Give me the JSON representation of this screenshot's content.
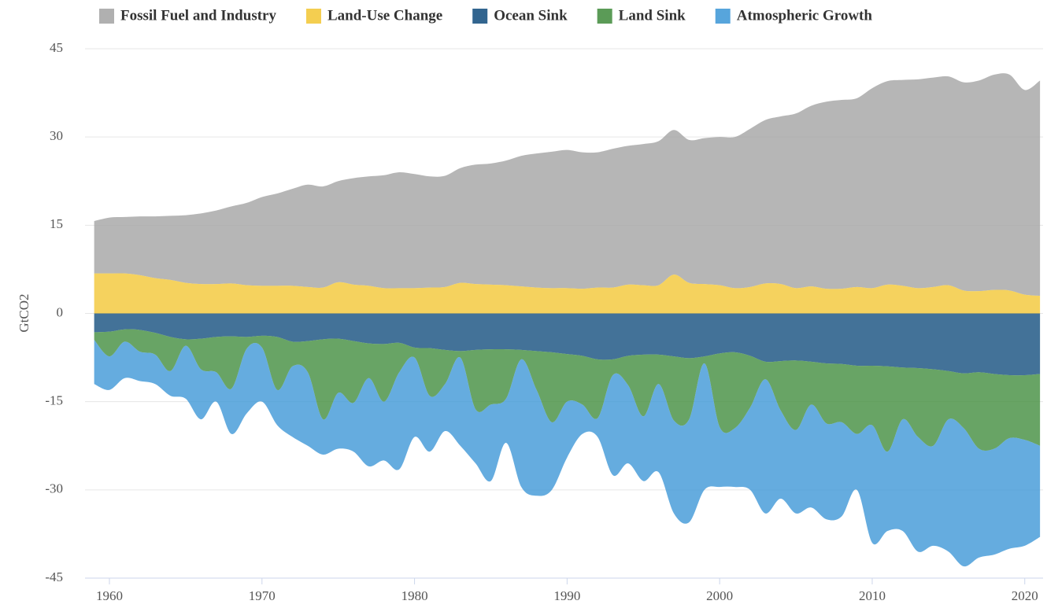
{
  "chart_data": {
    "type": "stacked_area",
    "y_label": "GtCO2",
    "x": [
      1959,
      1960,
      1961,
      1962,
      1963,
      1964,
      1965,
      1966,
      1967,
      1968,
      1969,
      1970,
      1971,
      1972,
      1973,
      1974,
      1975,
      1976,
      1977,
      1978,
      1979,
      1980,
      1981,
      1982,
      1983,
      1984,
      1985,
      1986,
      1987,
      1988,
      1989,
      1990,
      1991,
      1992,
      1993,
      1994,
      1995,
      1996,
      1997,
      1998,
      1999,
      2000,
      2001,
      2002,
      2003,
      2004,
      2005,
      2006,
      2007,
      2008,
      2009,
      2010,
      2011,
      2012,
      2013,
      2014,
      2015,
      2016,
      2017,
      2018,
      2019,
      2020,
      2021
    ],
    "series": [
      {
        "name": "Fossil Fuel and Industry",
        "color": "#a2a2a2",
        "values": [
          8.9,
          9.5,
          9.6,
          10.0,
          10.5,
          10.9,
          11.5,
          12.0,
          12.5,
          13.1,
          14.0,
          15.1,
          15.7,
          16.5,
          17.4,
          17.2,
          17.2,
          18.1,
          18.6,
          19.2,
          19.7,
          19.4,
          18.9,
          18.9,
          19.5,
          20.3,
          20.6,
          21.2,
          22.2,
          22.8,
          23.2,
          23.5,
          23.2,
          23.0,
          23.6,
          23.6,
          24.0,
          24.5,
          24.6,
          24.3,
          24.8,
          25.2,
          25.7,
          26.9,
          27.8,
          28.5,
          29.7,
          30.7,
          31.8,
          32.1,
          32.1,
          34.0,
          34.6,
          35.0,
          35.5,
          35.6,
          35.5,
          35.4,
          35.8,
          36.6,
          36.7,
          34.8,
          36.6
        ]
      },
      {
        "name": "Land-Use Change",
        "color": "#f2c531",
        "values": [
          6.8,
          6.8,
          6.8,
          6.5,
          6.0,
          5.7,
          5.2,
          5.0,
          5.0,
          5.1,
          4.8,
          4.7,
          4.7,
          4.7,
          4.5,
          4.4,
          5.3,
          4.9,
          4.7,
          4.3,
          4.3,
          4.3,
          4.4,
          4.5,
          5.2,
          5.0,
          4.9,
          4.8,
          4.6,
          4.4,
          4.3,
          4.3,
          4.2,
          4.4,
          4.4,
          4.9,
          4.8,
          4.8,
          6.6,
          5.2,
          5.0,
          4.8,
          4.3,
          4.5,
          5.1,
          5.0,
          4.3,
          4.6,
          4.2,
          4.2,
          4.5,
          4.3,
          4.9,
          4.7,
          4.3,
          4.5,
          4.8,
          3.9,
          3.8,
          4.0,
          3.9,
          3.2,
          3.0
        ]
      },
      {
        "name": "Ocean Sink",
        "color": "#0e4a7b",
        "values": [
          -3.2,
          -3.1,
          -2.7,
          -2.8,
          -3.3,
          -4.0,
          -4.4,
          -4.3,
          -4.0,
          -3.9,
          -4.0,
          -3.8,
          -4.0,
          -4.8,
          -4.7,
          -4.4,
          -4.3,
          -4.7,
          -5.1,
          -5.2,
          -5.0,
          -5.8,
          -5.9,
          -6.2,
          -6.4,
          -6.2,
          -6.1,
          -6.1,
          -6.2,
          -6.4,
          -6.6,
          -6.9,
          -7.2,
          -7.8,
          -7.8,
          -7.2,
          -7.0,
          -7.0,
          -7.3,
          -7.6,
          -7.3,
          -6.8,
          -6.6,
          -7.2,
          -8.2,
          -8.1,
          -8.0,
          -8.2,
          -8.5,
          -8.6,
          -8.9,
          -8.9,
          -9.0,
          -9.2,
          -9.3,
          -9.5,
          -9.8,
          -10.2,
          -10.0,
          -10.3,
          -10.5,
          -10.5,
          -10.3
        ]
      },
      {
        "name": "Land Sink",
        "color": "#3e8a3a",
        "values": [
          -1.3,
          -4.2,
          -2.1,
          -3.7,
          -3.7,
          -5.8,
          -1.1,
          -5.2,
          -6.0,
          -8.9,
          -2.0,
          -2.0,
          -9.0,
          -4.2,
          -5.3,
          -13.6,
          -9.2,
          -10.5,
          -5.9,
          -9.8,
          -5.0,
          -1.7,
          -8.1,
          -5.8,
          -1.1,
          -10.1,
          -9.4,
          -8.4,
          -1.6,
          -6.6,
          -11.9,
          -8.1,
          -8.3,
          -10.0,
          -2.7,
          -5.0,
          -10.5,
          -5.0,
          -10.9,
          -10.4,
          -1.2,
          -12.5,
          -12.9,
          -8.8,
          -3.0,
          -8.4,
          -11.8,
          -7.3,
          -10.2,
          -9.9,
          -11.6,
          -10.1,
          -14.5,
          -8.8,
          -11.7,
          -13.0,
          -8.2,
          -9.3,
          -13.0,
          -12.7,
          -10.7,
          -11.0,
          -12.2
        ]
      },
      {
        "name": "Atmospheric Growth",
        "color": "#3a95d6",
        "values": [
          -7.5,
          -5.7,
          -6.2,
          -5.0,
          -5.0,
          -4.2,
          -9.0,
          -8.5,
          -5.0,
          -7.7,
          -11.0,
          -9.2,
          -6.0,
          -12.0,
          -12.5,
          -6.0,
          -9.5,
          -8.3,
          -15.0,
          -10.0,
          -16.5,
          -13.5,
          -9.5,
          -8.0,
          -15.0,
          -9.2,
          -13.0,
          -7.5,
          -21.7,
          -18.0,
          -11.5,
          -9.5,
          -5.0,
          -3.2,
          -17.0,
          -13.3,
          -11.0,
          -15.0,
          -15.8,
          -17.5,
          -21.5,
          -10.2,
          -10.0,
          -14.0,
          -22.8,
          -15.0,
          -14.2,
          -17.5,
          -16.3,
          -16.0,
          -9.5,
          -20.0,
          -13.5,
          -19.0,
          -19.5,
          -17.0,
          -22.5,
          -23.5,
          -18.5,
          -18.0,
          -18.8,
          -18.0,
          -15.5
        ]
      }
    ],
    "xlim": [
      1958.4,
      2021.2
    ],
    "xticks": [
      1960,
      1970,
      1980,
      1990,
      2000,
      2010,
      2020
    ],
    "ylim": [
      -45,
      45
    ],
    "yticks": [
      -45,
      -30,
      -15,
      0,
      15,
      30,
      45
    ],
    "grid": true,
    "legend": "top"
  }
}
